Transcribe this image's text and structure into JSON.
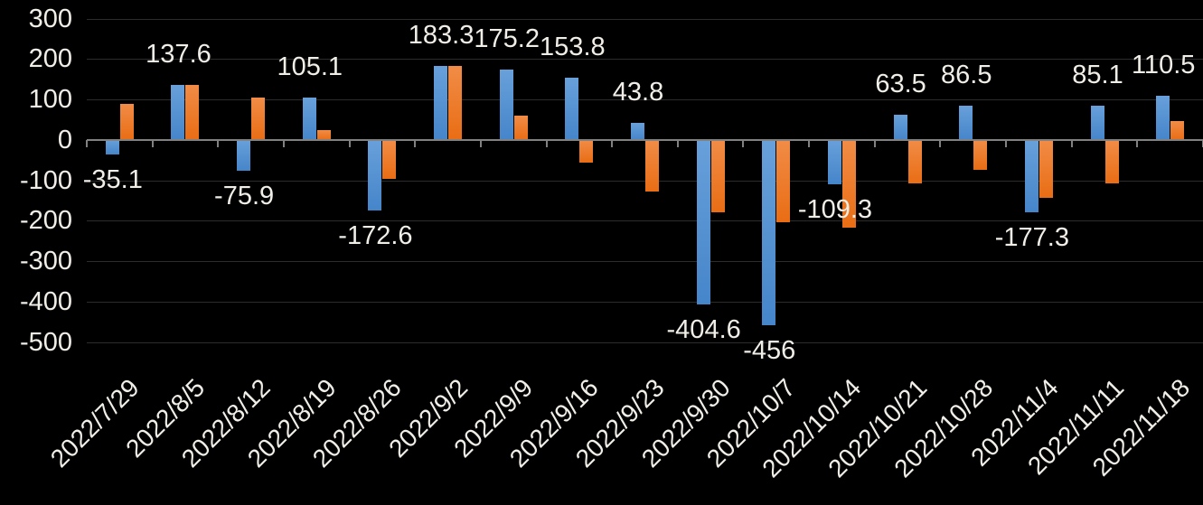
{
  "chart_data": {
    "type": "bar",
    "title": "",
    "categories": [
      "2022/7/29",
      "2022/8/5",
      "2022/8/12",
      "2022/8/19",
      "2022/8/26",
      "2022/9/2",
      "2022/9/9",
      "2022/9/16",
      "2022/9/23",
      "2022/9/30",
      "2022/10/7",
      "2022/10/14",
      "2022/10/21",
      "2022/10/28",
      "2022/11/4",
      "2022/11/11",
      "2022/11/18"
    ],
    "series": [
      {
        "name": "blue-series",
        "color_top": "#68a0da",
        "color_bottom": "#4585ca",
        "values": [
          -35.1,
          137.6,
          -75.9,
          105.1,
          -172.6,
          183.3,
          175.2,
          153.8,
          43.8,
          -404.6,
          -456,
          -109.3,
          63.5,
          86.5,
          -177.3,
          85.1,
          110.5
        ]
      },
      {
        "name": "orange-series",
        "color_top": "#f18c47",
        "color_bottom": "#e96d14",
        "values": [
          91,
          137,
          105,
          26,
          -95,
          183,
          62,
          -54,
          -127,
          -178,
          -203,
          -215,
          -106,
          -72,
          -143,
          -106,
          48
        ]
      }
    ],
    "data_labels": {
      "labeled_series_index": 0,
      "labels": [
        "-35.1",
        "137.6",
        "-75.9",
        "105.1",
        "-172.6",
        "183.3",
        "175.2",
        "153.8",
        "43.8",
        "-404.6",
        "-456",
        "-109.3",
        "63.5",
        "86.5",
        "-177.3",
        "85.1",
        "110.5"
      ]
    },
    "y_axis": {
      "ticks": [
        300,
        200,
        100,
        0,
        -100,
        -200,
        -300,
        -400,
        -500
      ],
      "min": -500,
      "max": 300
    },
    "grid": true,
    "legend_position": "none",
    "colors": {
      "background": "#000000",
      "text": "#f1eee8",
      "gridline": "#2c2c2c",
      "axis_line": "#818181"
    }
  }
}
